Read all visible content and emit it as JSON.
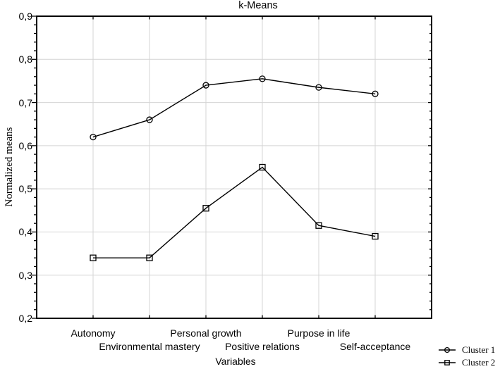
{
  "chart_data": {
    "type": "line",
    "title": "k-Means",
    "xlabel": "Variables",
    "ylabel": "Normalized means",
    "categories": [
      "Autonomy",
      "Environmental mastery",
      "Personal growth",
      "Positive relations",
      "Purpose in life",
      "Self-acceptance"
    ],
    "series": [
      {
        "name": "Cluster 1",
        "marker": "circle",
        "values": [
          0.62,
          0.66,
          0.74,
          0.755,
          0.735,
          0.72
        ]
      },
      {
        "name": "Cluster 2",
        "marker": "square",
        "values": [
          0.34,
          0.34,
          0.455,
          0.55,
          0.415,
          0.39
        ]
      }
    ],
    "ylim": [
      0.2,
      0.9
    ],
    "ytick_step": 0.1,
    "minor_tick_step": 0.02,
    "ytick_labels": [
      "0,2",
      "0,3",
      "0,4",
      "0,5",
      "0,6",
      "0,7",
      "0,8",
      "0,9"
    ],
    "grid": true,
    "legend_position": "bottom-right",
    "colors": {
      "line": "#000000",
      "grid": "#d4d4d4",
      "background": "#ffffff",
      "text": "#000000"
    }
  }
}
